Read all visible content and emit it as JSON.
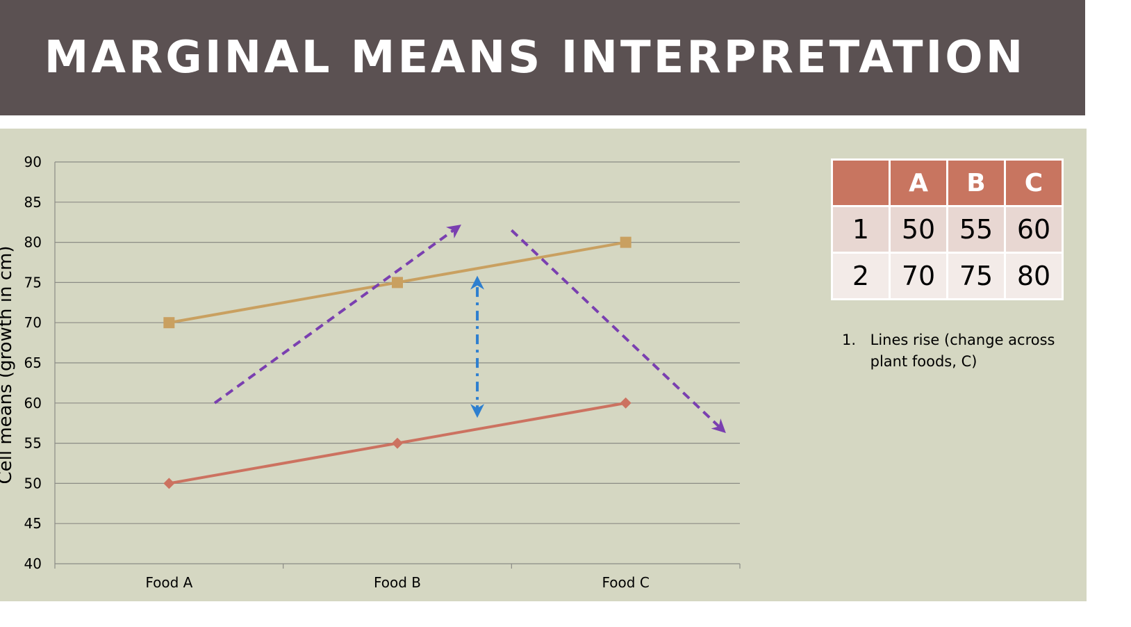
{
  "slide": {
    "title": "MARGINAL MEANS INTERPRETATION"
  },
  "colors": {
    "title_bg": "#5b5152",
    "panel_bg": "#d5d7c2",
    "series1": "#cc7260",
    "series2": "#c9a060",
    "arrow_purple": "#7a3fb0",
    "arrow_blue": "#2e7fcf",
    "table_header": "#c87560"
  },
  "chart_data": {
    "type": "line",
    "categories": [
      "Food A",
      "Food B",
      "Food C"
    ],
    "series": [
      {
        "name": "1",
        "values": [
          50,
          55,
          60
        ],
        "marker": "diamond"
      },
      {
        "name": "2",
        "values": [
          70,
          75,
          80
        ],
        "marker": "square"
      }
    ],
    "ylabel": "Cell means (growth in cm)",
    "ylim": [
      40,
      90
    ],
    "yticks": [
      40,
      45,
      50,
      55,
      60,
      65,
      70,
      75,
      80,
      85,
      90
    ],
    "grid": true,
    "annotations": [
      {
        "type": "dashed-arrow",
        "color": "purple",
        "from": [
          0.2,
          60
        ],
        "to": [
          1.27,
          82
        ]
      },
      {
        "type": "dashed-arrow",
        "color": "purple",
        "from": [
          1.5,
          81.5
        ],
        "to": [
          2.43,
          56.5
        ]
      },
      {
        "type": "double-arrow",
        "color": "blue",
        "x": 1.35,
        "from": 58.5,
        "to": 75.5
      }
    ]
  },
  "table": {
    "headers": [
      "",
      "A",
      "B",
      "C"
    ],
    "rows": [
      [
        "1",
        "50",
        "55",
        "60"
      ],
      [
        "2",
        "70",
        "75",
        "80"
      ]
    ]
  },
  "note": {
    "number": "1.",
    "text": "Lines rise (change across plant foods, C)"
  }
}
